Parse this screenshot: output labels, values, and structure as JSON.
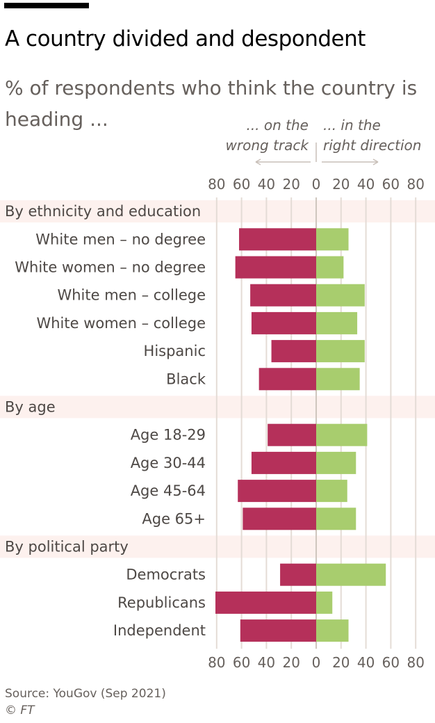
{
  "title": "A country divided and despondent",
  "subtitle": "% of respondents who think the country is heading ...",
  "annotations": {
    "left_line1": "... on the",
    "left_line2": "wrong track",
    "right_line1": "... in the",
    "right_line2": "right direction"
  },
  "source": "Source: YouGov (Sep 2021)",
  "copyright": "© FT",
  "colors": {
    "wrong_track": "#b5305a",
    "right_direction": "#a8cd6e",
    "group_band": "#fdf1ee",
    "gridline": "#e4dcd6",
    "axis_text": "#66605c",
    "label_text": "#4d4845"
  },
  "chart_data": {
    "type": "bar",
    "orientation": "diverging-horizontal",
    "title": "A country divided and despondent",
    "subtitle": "% of respondents who think the country is heading ...",
    "xlim": [
      -80,
      80
    ],
    "ticks": [
      -80,
      -60,
      -40,
      -20,
      0,
      20,
      40,
      60,
      80
    ],
    "tick_labels": [
      "80",
      "60",
      "40",
      "20",
      "0",
      "20",
      "40",
      "60",
      "80"
    ],
    "series_names": [
      "... on the wrong track",
      "... in the right direction"
    ],
    "groups": [
      {
        "name": "By ethnicity and education",
        "rows": [
          {
            "label": "White men – no degree",
            "wrong_track": 62,
            "right_direction": 26
          },
          {
            "label": "White women – no degree",
            "wrong_track": 65,
            "right_direction": 22
          },
          {
            "label": "White men – college",
            "wrong_track": 53,
            "right_direction": 39
          },
          {
            "label": "White women – college",
            "wrong_track": 52,
            "right_direction": 33
          },
          {
            "label": "Hispanic",
            "wrong_track": 36,
            "right_direction": 39
          },
          {
            "label": "Black",
            "wrong_track": 46,
            "right_direction": 35
          }
        ]
      },
      {
        "name": "By age",
        "rows": [
          {
            "label": "Age 18-29",
            "wrong_track": 39,
            "right_direction": 41
          },
          {
            "label": "Age 30-44",
            "wrong_track": 52,
            "right_direction": 32
          },
          {
            "label": "Age 45-64",
            "wrong_track": 63,
            "right_direction": 25
          },
          {
            "label": "Age 65+",
            "wrong_track": 59,
            "right_direction": 32
          }
        ]
      },
      {
        "name": "By political party",
        "rows": [
          {
            "label": "Democrats",
            "wrong_track": 29,
            "right_direction": 56
          },
          {
            "label": "Republicans",
            "wrong_track": 81,
            "right_direction": 13
          },
          {
            "label": "Independent",
            "wrong_track": 61,
            "right_direction": 26
          }
        ]
      }
    ]
  }
}
